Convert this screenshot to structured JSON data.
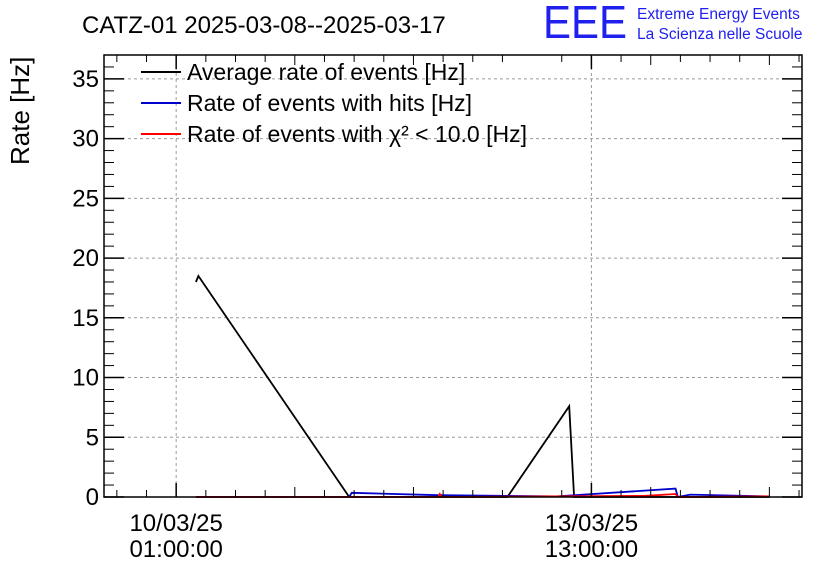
{
  "chart_data": {
    "type": "line",
    "title": "CATZ-01 2025-03-08--2025-03-17",
    "ylabel": "Rate [Hz]",
    "xlabel": "",
    "ylim": [
      0,
      37
    ],
    "yticks": [
      0,
      5,
      10,
      15,
      20,
      25,
      30,
      35
    ],
    "xlim": [
      "2025-03-09 10:24",
      "2025-03-15 07:36"
    ],
    "xticks": [
      {
        "x": "2025-03-10 01:00",
        "line1": "10/03/25",
        "line2": "01:00:00"
      },
      {
        "x": "2025-03-13 13:00",
        "line1": "13/03/25",
        "line2": "13:00:00"
      }
    ],
    "grid": true,
    "legend_position": "top-left",
    "series": [
      {
        "name": "Average rate of events [Hz]",
        "color": "#000000",
        "points": [
          [
            "2025-03-10 05:00",
            18.0
          ],
          [
            "2025-03-10 05:30",
            18.5
          ],
          [
            "2025-03-11 12:00",
            0.0
          ],
          [
            "2025-03-12 20:00",
            0.0
          ],
          [
            "2025-03-13 08:30",
            7.6
          ],
          [
            "2025-03-13 09:30",
            0.0
          ],
          [
            "2025-03-15 01:00",
            0.0
          ]
        ]
      },
      {
        "name": "Rate of events with hits [Hz]",
        "color": "#0000cc",
        "points": [
          [
            "2025-03-10 05:00",
            0.0
          ],
          [
            "2025-03-11 12:00",
            0.0
          ],
          [
            "2025-03-11 12:30",
            0.35
          ],
          [
            "2025-03-12 06:00",
            0.15
          ],
          [
            "2025-03-13 06:00",
            0.05
          ],
          [
            "2025-03-14 06:00",
            0.7
          ],
          [
            "2025-03-14 06:30",
            0.0
          ],
          [
            "2025-03-14 09:00",
            0.2
          ],
          [
            "2025-03-15 01:00",
            0.05
          ]
        ]
      },
      {
        "name": "Rate of events with χ² < 10.0 [Hz]",
        "color": "#ff0000",
        "points": [
          [
            "2025-03-10 05:00",
            0.0
          ],
          [
            "2025-03-12 06:00",
            0.0
          ],
          [
            "2025-03-12 06:20",
            0.25
          ],
          [
            "2025-03-12 06:40",
            0.0
          ],
          [
            "2025-03-14 00:00",
            0.1
          ],
          [
            "2025-03-14 06:00",
            0.25
          ],
          [
            "2025-03-14 06:30",
            0.0
          ],
          [
            "2025-03-15 01:00",
            0.05
          ]
        ]
      }
    ]
  },
  "logo": {
    "mark": "EEE",
    "line1": "Extreme Energy Events",
    "line2": "La Scienza nelle Scuole",
    "color": "#2020ee"
  }
}
